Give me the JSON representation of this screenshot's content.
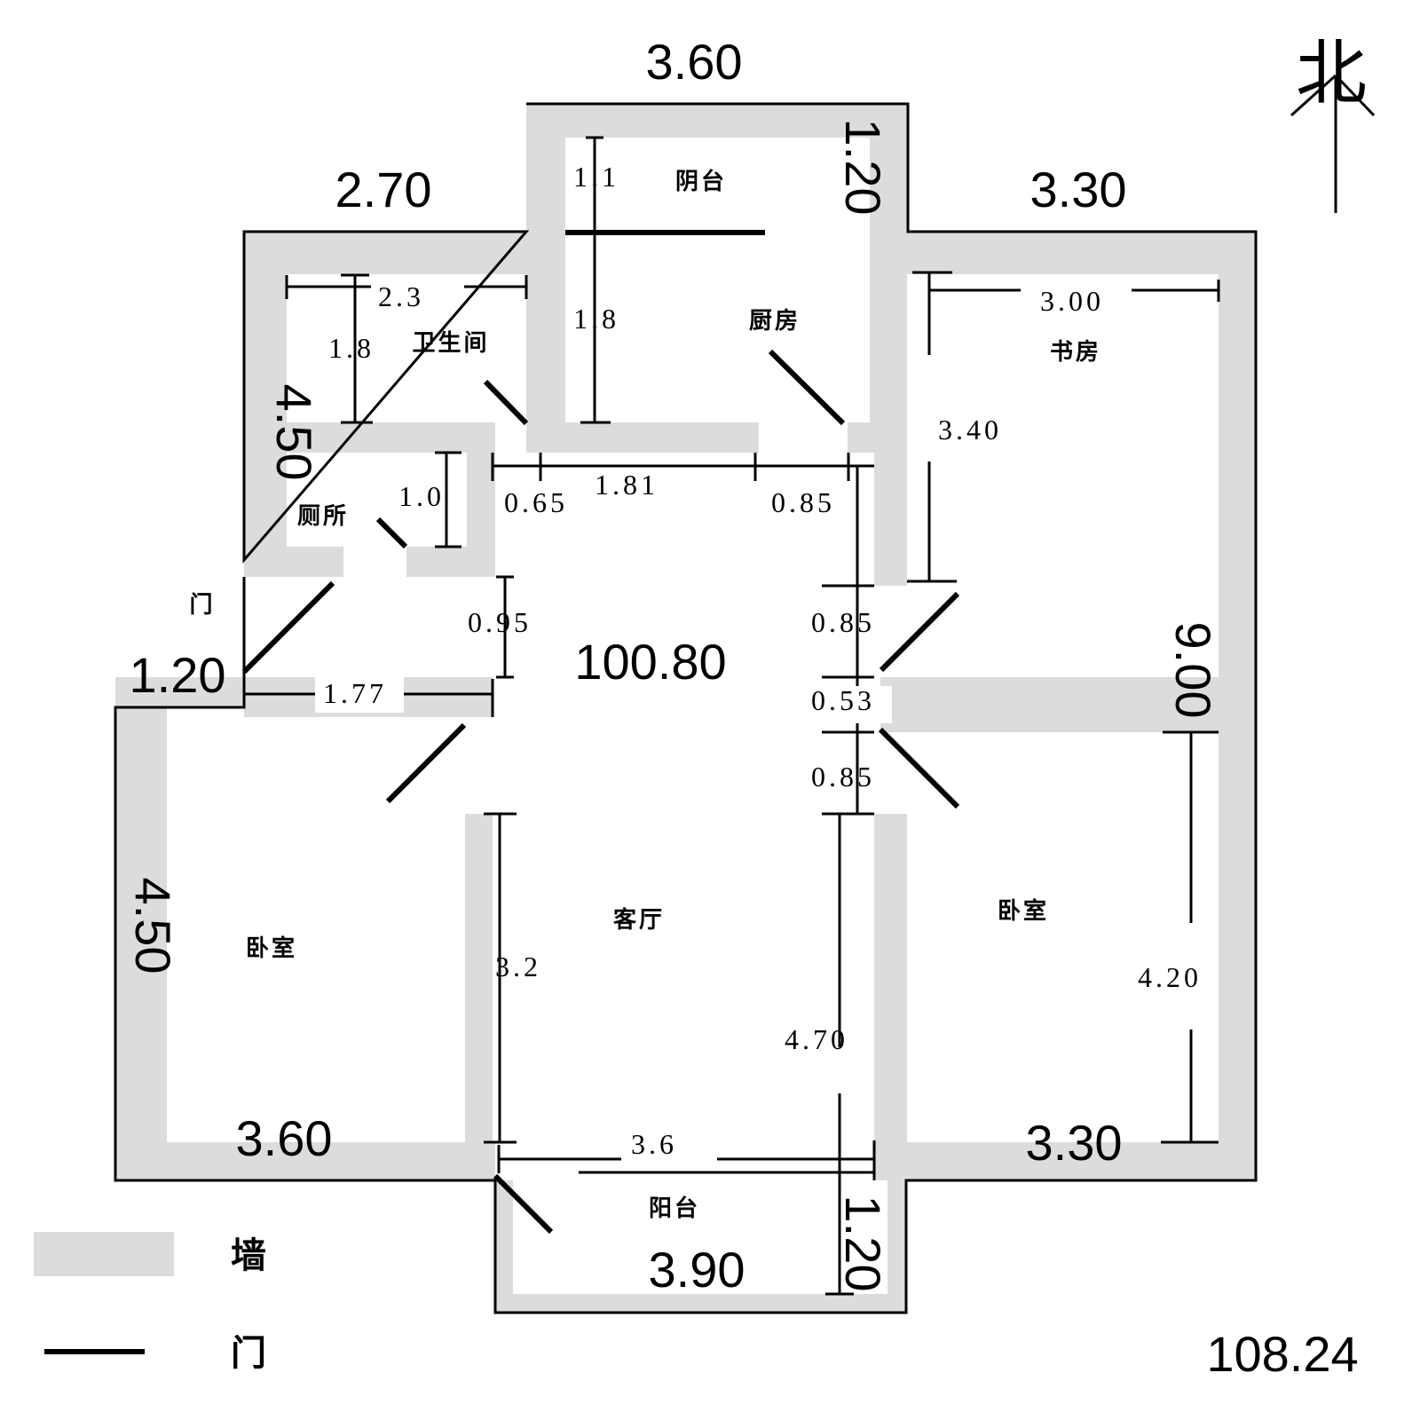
{
  "north": "北",
  "total_area": "108.24",
  "inner_area": "100.80",
  "rooms": {
    "balcony_north": "阴台",
    "kitchen": "厨房",
    "bathroom": "卫生间",
    "toilet": "厕所",
    "study": "书房",
    "entrance_door": "门",
    "living_room": "客厅",
    "bedroom_left": "卧室",
    "bedroom_right": "卧室",
    "balcony_south": "阳台"
  },
  "big_dims": {
    "top_balcony_width": "3.60",
    "top_balcony_depth": "1.20",
    "top_left_width": "2.70",
    "top_right_width": "3.30",
    "left_upper_height": "4.50",
    "entry_width": "1.20",
    "left_lower_height": "4.50",
    "right_total_height": "9.00",
    "bottom_left_width": "3.60",
    "bottom_right_width": "3.30",
    "bottom_balcony_width": "3.90",
    "bottom_balcony_depth": "1.20"
  },
  "small_dims": {
    "bath_width": "2.3",
    "bath_depth": "1.8",
    "kitchen_upper": "1.1",
    "kitchen_lower": "1.8",
    "study_width": "3.00",
    "study_depth": "3.40",
    "toilet_depth": "1.0",
    "seg_a": "0.65",
    "seg_b": "1.81",
    "seg_c": "0.85",
    "corridor_v": "0.95",
    "right_a": "0.85",
    "right_b": "0.53",
    "right_c": "0.85",
    "bedroom_left_top": "1.77",
    "living_left": "3.2",
    "living_right": "4.70",
    "bedroom_right_depth": "4.20",
    "living_bottom": "3.6"
  },
  "legend": {
    "wall": "墙",
    "door": "门"
  },
  "colors": {
    "wall": "#dcdcde",
    "line": "#000000",
    "background": "#ffffff"
  }
}
